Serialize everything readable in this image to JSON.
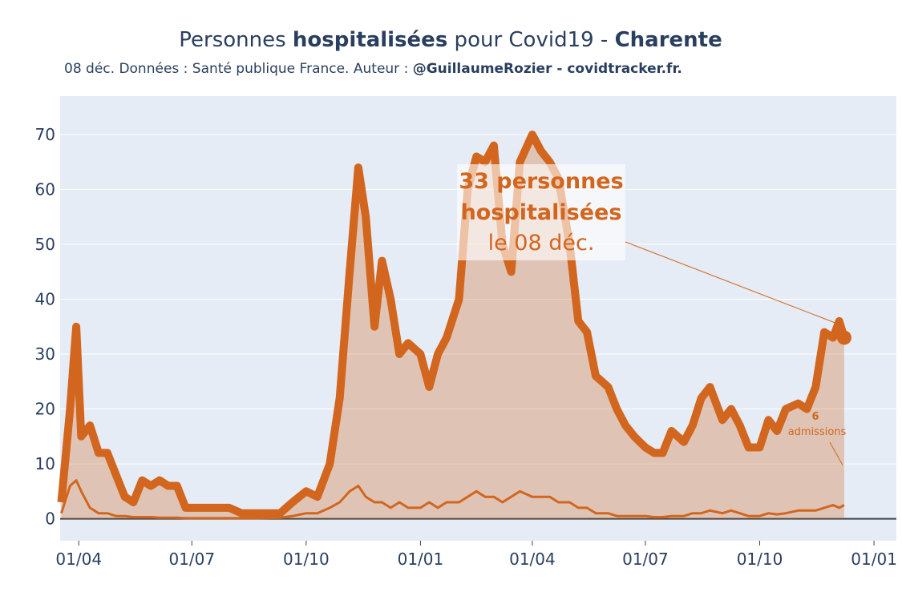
{
  "chart_data": {
    "type": "line",
    "title_parts": [
      "Personnes ",
      "hospitalisées",
      " pour Covid19 - ",
      "Charente"
    ],
    "subtitle_parts": [
      "08 déc. Données : Santé publique France. Auteur : ",
      "@GuillaumeRozier - covidtracker.fr."
    ],
    "x": [
      "18/03",
      "25/03",
      "30/03",
      "03/04",
      "10/04",
      "17/04",
      "24/04",
      "01/05",
      "08/05",
      "15/05",
      "22/05",
      "29/05",
      "05/06",
      "12/06",
      "19/06",
      "26/06",
      "03/07",
      "15/07",
      "31/07",
      "10/08",
      "25/08",
      "10/09",
      "20/09",
      "01/10",
      "10/10",
      "20/10",
      "28/10",
      "05/11",
      "12/11",
      "18/11",
      "25/11",
      "01/12",
      "08/12",
      "15/12",
      "22/12",
      "01/01",
      "08/01",
      "15/01",
      "22/01",
      "01/02",
      "08/02",
      "15/02",
      "22/02",
      "01/03",
      "08/03",
      "15/03",
      "22/03",
      "01/04",
      "08/04",
      "15/04",
      "22/04",
      "01/05",
      "08/05",
      "15/05",
      "22/05",
      "01/06",
      "08/06",
      "15/06",
      "22/06",
      "01/07",
      "08/07",
      "15/07",
      "22/07",
      "01/08",
      "08/08",
      "15/08",
      "22/08",
      "01/09",
      "08/09",
      "15/09",
      "22/09",
      "01/10",
      "08/10",
      "15/10",
      "22/10",
      "01/11",
      "08/11",
      "15/11",
      "22/11",
      "29/11",
      "04/12",
      "08/12"
    ],
    "series": [
      {
        "name": "Personnes hospitalisées",
        "color": "#d2661e",
        "fill": true,
        "values": [
          3,
          20,
          35,
          15,
          17,
          12,
          12,
          8,
          4,
          3,
          7,
          6,
          7,
          6,
          6,
          2,
          2,
          2,
          2,
          1,
          1,
          1,
          3,
          5,
          4,
          10,
          22,
          45,
          64,
          55,
          35,
          47,
          40,
          30,
          32,
          30,
          24,
          30,
          33,
          40,
          60,
          66,
          65,
          68,
          50,
          45,
          65,
          70,
          67,
          65,
          62,
          50,
          36,
          34,
          26,
          24,
          20,
          17,
          15,
          13,
          12,
          12,
          16,
          14,
          17,
          22,
          24,
          18,
          20,
          17,
          13,
          13,
          18,
          16,
          20,
          21,
          20,
          24,
          34,
          33,
          36,
          33
        ]
      },
      {
        "name": "Admissions",
        "color": "#d2661e",
        "fill": false,
        "values": [
          1,
          6,
          7,
          5,
          2,
          1,
          1,
          0.5,
          0.5,
          0.3,
          0.3,
          0.3,
          0.2,
          0.2,
          0.2,
          0.1,
          0.1,
          0.1,
          0.1,
          0.1,
          0.1,
          0.2,
          0.5,
          1,
          1,
          2,
          3,
          5,
          6,
          4,
          3,
          3,
          2,
          3,
          2,
          2,
          3,
          2,
          3,
          3,
          4,
          5,
          4,
          4,
          3,
          4,
          5,
          4,
          4,
          4,
          3,
          3,
          2,
          2,
          1,
          1,
          0.5,
          0.5,
          0.5,
          0.5,
          0.3,
          0.3,
          0.5,
          0.5,
          1,
          1,
          1.5,
          1,
          1.5,
          1,
          0.5,
          0.5,
          1,
          0.8,
          1,
          1.5,
          1.5,
          1.5,
          2,
          2.5,
          2,
          2.5
        ]
      }
    ],
    "xlim": [
      "17/03",
      "19/01"
    ],
    "xticks": [
      "01/04",
      "01/07",
      "01/10",
      "01/01",
      "01/04",
      "01/07",
      "01/10",
      "01/01"
    ],
    "ylim": [
      -4,
      77
    ],
    "yticks": [
      0,
      10,
      20,
      30,
      40,
      50,
      60,
      70
    ],
    "grid": true,
    "annotations": [
      {
        "lines": [
          "33 personnes",
          "hospitalisées",
          "le 08 déc."
        ]
      },
      {
        "lines": [
          "6",
          "admissions"
        ]
      }
    ]
  }
}
